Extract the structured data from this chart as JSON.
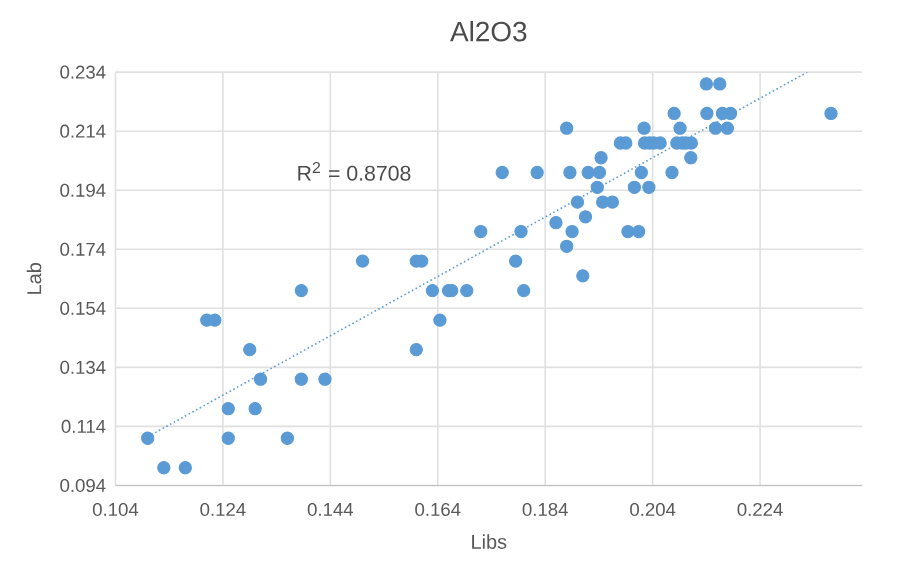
{
  "chart_data": {
    "type": "scatter",
    "title": "Al2O3",
    "xlabel": "Libs",
    "ylabel": "Lab",
    "annotations": [
      "R$^{2}$ = 0.8708"
    ],
    "xlim": [
      0.104,
      0.243
    ],
    "ylim": [
      0.094,
      0.234
    ],
    "xticks": [
      0.104,
      0.124,
      0.144,
      0.164,
      0.184,
      0.204,
      0.224
    ],
    "yticks": [
      0.094,
      0.114,
      0.134,
      0.154,
      0.174,
      0.194,
      0.214,
      0.234
    ],
    "grid": true,
    "series": [
      {
        "color": "#5b9bd5",
        "marker": "circle",
        "x": [
          0.11,
          0.113,
          0.117,
          0.121,
          0.1225,
          0.129,
          0.125,
          0.125,
          0.13,
          0.131,
          0.136,
          0.1386,
          0.1386,
          0.143,
          0.15,
          0.16,
          0.161,
          0.16,
          0.163,
          0.1644,
          0.166,
          0.1666,
          0.1694,
          0.172,
          0.176,
          0.1785,
          0.1795,
          0.18,
          0.1825,
          0.186,
          0.188,
          0.1886,
          0.188,
          0.189,
          0.19,
          0.191,
          0.1915,
          0.192,
          0.1937,
          0.1941,
          0.1944,
          0.1947,
          0.1965,
          0.198,
          0.199,
          0.1994,
          0.2006,
          0.2014,
          0.2019,
          0.2024,
          0.2025,
          0.2034,
          0.2042,
          0.2054,
          0.2033,
          0.2076,
          0.208,
          0.2091,
          0.2085,
          0.2095,
          0.2102,
          0.2112,
          0.2111,
          0.214,
          0.2141,
          0.2157,
          0.2165,
          0.217,
          0.2185,
          0.2179,
          0.2372
        ],
        "values": [
          0.11,
          0.1,
          0.1,
          0.15,
          0.15,
          0.14,
          0.12,
          0.11,
          0.12,
          0.13,
          0.11,
          0.16,
          0.13,
          0.13,
          0.17,
          0.17,
          0.17,
          0.14,
          0.16,
          0.15,
          0.16,
          0.16,
          0.16,
          0.18,
          0.2,
          0.17,
          0.18,
          0.16,
          0.2,
          0.183,
          0.215,
          0.2,
          0.175,
          0.18,
          0.19,
          0.165,
          0.185,
          0.2,
          0.195,
          0.2,
          0.205,
          0.19,
          0.19,
          0.21,
          0.21,
          0.18,
          0.195,
          0.18,
          0.2,
          0.215,
          0.21,
          0.21,
          0.21,
          0.21,
          0.195,
          0.2,
          0.22,
          0.215,
          0.21,
          0.21,
          0.21,
          0.21,
          0.205,
          0.23,
          0.22,
          0.215,
          0.23,
          0.22,
          0.22,
          0.215,
          0.22
        ]
      },
      {
        "type": "line",
        "color": "#5b9bd5",
        "line_style": "dotted",
        "marker": "none",
        "x": [
          0.11,
          0.2328
        ],
        "values": [
          0.1105,
          0.234
        ]
      }
    ]
  }
}
